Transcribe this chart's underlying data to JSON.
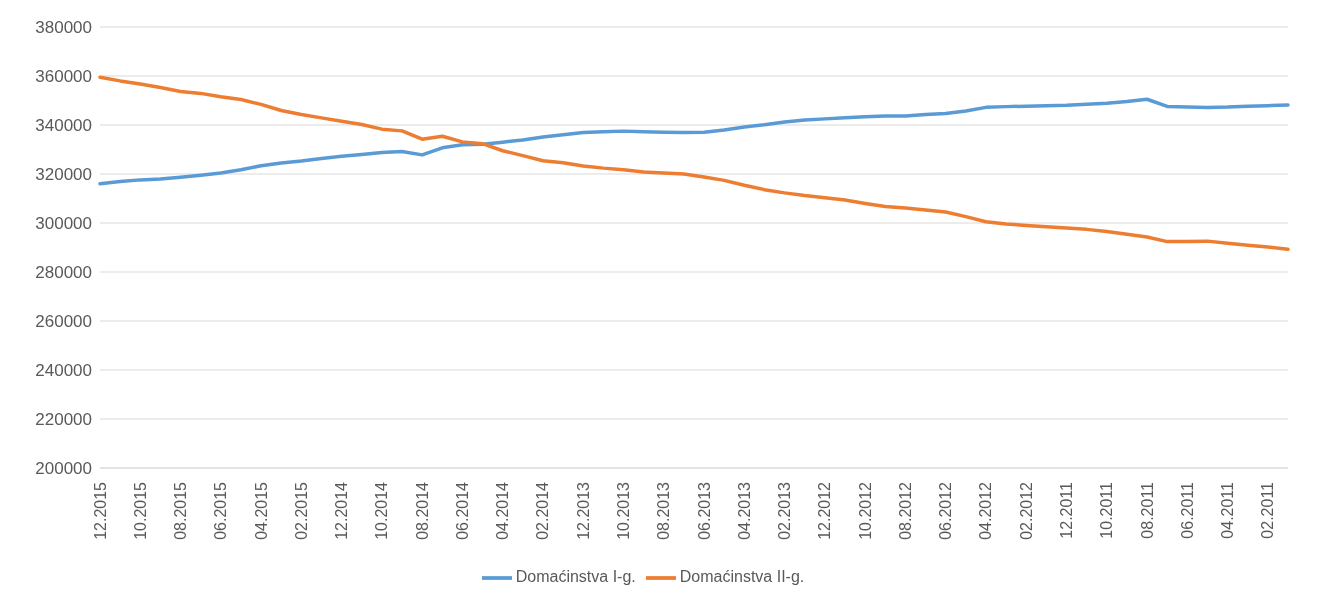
{
  "chart_data": {
    "type": "line",
    "categories": [
      "12.2015",
      null,
      "10.2015",
      null,
      "08.2015",
      null,
      "06.2015",
      null,
      "04.2015",
      null,
      "02.2015",
      null,
      "12.2014",
      null,
      "10.2014",
      null,
      "08.2014",
      null,
      "06.2014",
      null,
      "04.2014",
      null,
      "02.2014",
      null,
      "12.2013",
      null,
      "10.2013",
      null,
      "08.2013",
      null,
      "06.2013",
      null,
      "04.2013",
      null,
      "02.2013",
      null,
      "12.2012",
      null,
      "10.2012",
      null,
      "08.2012",
      null,
      "06.2012",
      null,
      "04.2012",
      null,
      "02.2012",
      null,
      "12.2011",
      null,
      "10.2011",
      null,
      "08.2011",
      null,
      "06.2011",
      null,
      "04.2011",
      null,
      "02.2011",
      null
    ],
    "series": [
      {
        "name": "Domaćinstva I-g.",
        "color": "#5b9bd5",
        "values": [
          316000,
          316900,
          317600,
          318000,
          318700,
          319500,
          320400,
          321700,
          323400,
          324500,
          325300,
          326300,
          327200,
          328000,
          328800,
          329200,
          327800,
          330700,
          331900,
          332100,
          333000,
          333900,
          335100,
          336000,
          336900,
          337200,
          337500,
          337200,
          337000,
          336900,
          337000,
          338000,
          339200,
          340100,
          341200,
          342000,
          342500,
          343000,
          343400,
          343700,
          343700,
          344300,
          344700,
          345700,
          347200,
          347500,
          347700,
          347900,
          348100,
          348500,
          348900,
          349600,
          350500,
          347600,
          347300,
          347100,
          347300,
          347700,
          347900,
          348200
        ]
      },
      {
        "name": "Domaćinstva II-g.",
        "color": "#ed7d31",
        "values": [
          359500,
          358000,
          356700,
          355300,
          353700,
          352900,
          351500,
          350400,
          348400,
          345900,
          344300,
          342900,
          341500,
          340200,
          338300,
          337600,
          334200,
          335400,
          333100,
          332400,
          329500,
          327500,
          325400,
          324600,
          323300,
          322400,
          321700,
          320800,
          320400,
          320000,
          318800,
          317400,
          315400,
          313600,
          312300,
          311200,
          310300,
          309400,
          308000,
          306700,
          306100,
          305300,
          304500,
          302600,
          300500,
          299600,
          299000,
          298500,
          298000,
          297400,
          296500,
          295400,
          294300,
          292400,
          292400,
          292600,
          291700,
          290900,
          290200,
          289300
        ]
      }
    ],
    "ylim": [
      200000,
      380000
    ],
    "yticks": [
      200000,
      220000,
      240000,
      260000,
      280000,
      300000,
      320000,
      340000,
      360000,
      380000
    ],
    "grid": "y",
    "legend": "bottom",
    "marker": "none",
    "line_style": "solid"
  }
}
